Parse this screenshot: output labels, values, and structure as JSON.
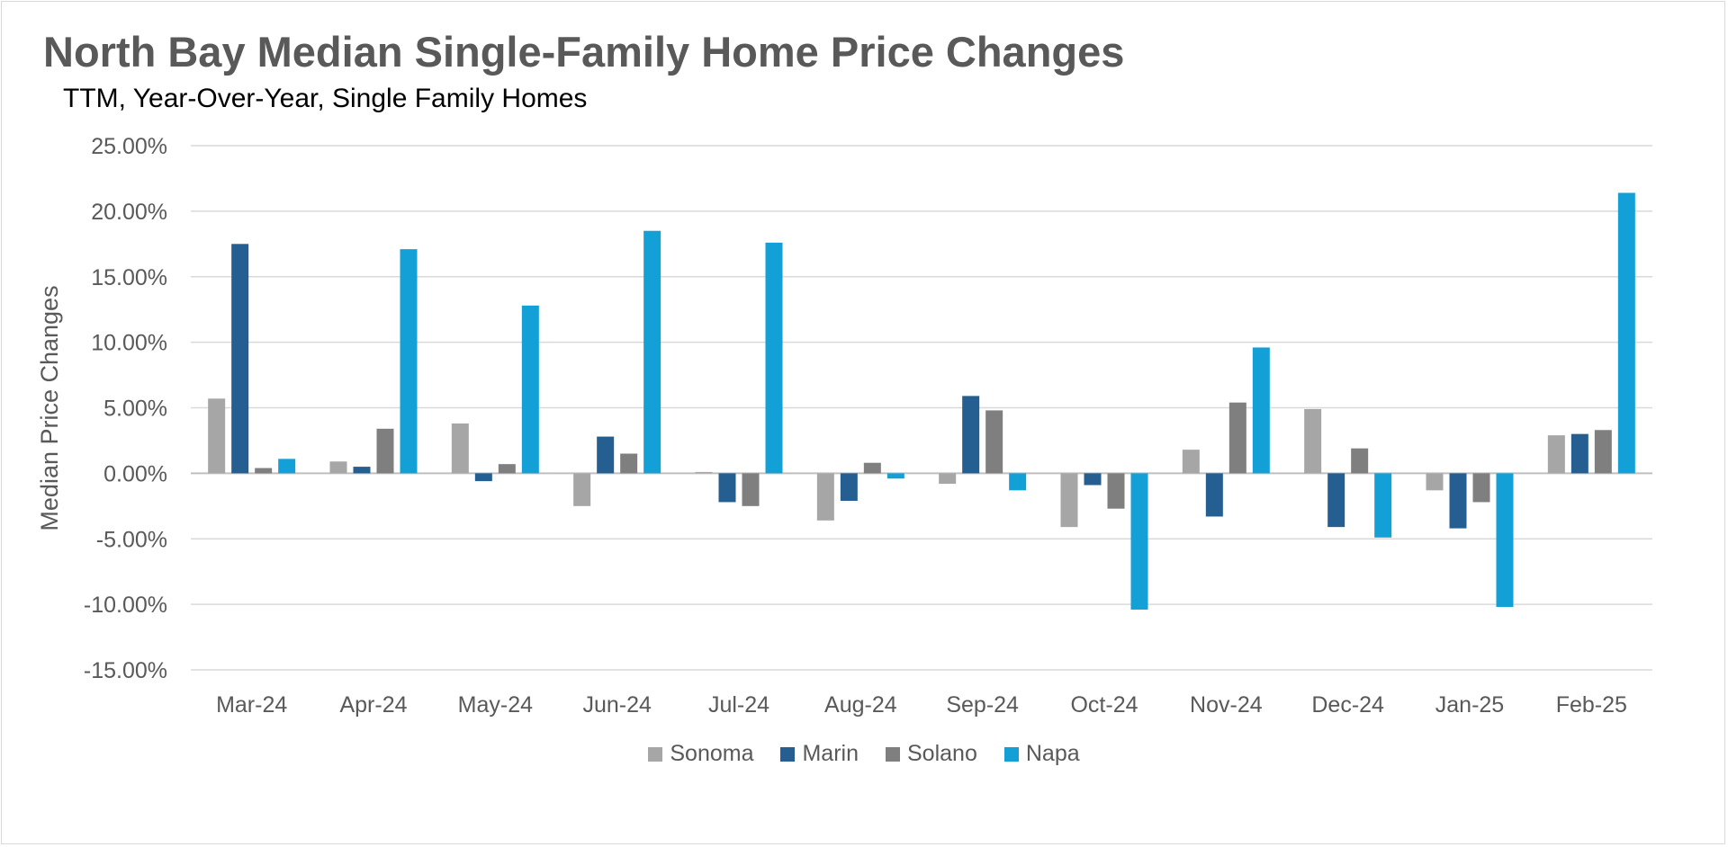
{
  "chart_data": {
    "type": "bar",
    "title": "North Bay Median Single-Family Home Price Changes",
    "subtitle": "TTM, Year-Over-Year, Single Family Homes",
    "xlabel": "",
    "ylabel": "Median Price Changes",
    "ylim": [
      -15,
      25
    ],
    "yticks": [
      25,
      20,
      15,
      10,
      5,
      0,
      -5,
      -10,
      -15
    ],
    "ytick_labels": [
      "25.00%",
      "20.00%",
      "15.00%",
      "10.00%",
      "5.00%",
      "0.00%",
      "-5.00%",
      "-10.00%",
      "-15.00%"
    ],
    "grid": true,
    "legend_position": "bottom",
    "categories": [
      "Mar-24",
      "Apr-24",
      "May-24",
      "Jun-24",
      "Jul-24",
      "Aug-24",
      "Sep-24",
      "Oct-24",
      "Nov-24",
      "Dec-24",
      "Jan-25",
      "Feb-25"
    ],
    "series": [
      {
        "name": "Sonoma",
        "color": "#a6a6a6",
        "values": [
          5.7,
          0.9,
          3.8,
          -2.5,
          0.1,
          -3.6,
          -0.8,
          -4.1,
          1.8,
          4.9,
          -1.3,
          2.9
        ]
      },
      {
        "name": "Marin",
        "color": "#255e91",
        "values": [
          17.5,
          0.5,
          -0.6,
          2.8,
          -2.2,
          -2.1,
          5.9,
          -0.9,
          -3.3,
          -4.1,
          -4.2,
          3.0
        ]
      },
      {
        "name": "Solano",
        "color": "#7f7f7f",
        "values": [
          0.4,
          3.4,
          0.7,
          1.5,
          -2.5,
          0.8,
          4.8,
          -2.7,
          5.4,
          1.9,
          -2.2,
          3.3
        ]
      },
      {
        "name": "Napa",
        "color": "#12a0d7",
        "values": [
          1.1,
          17.1,
          12.8,
          18.5,
          17.6,
          -0.4,
          -1.3,
          -10.4,
          9.6,
          -4.9,
          -10.2,
          21.4
        ]
      }
    ]
  }
}
